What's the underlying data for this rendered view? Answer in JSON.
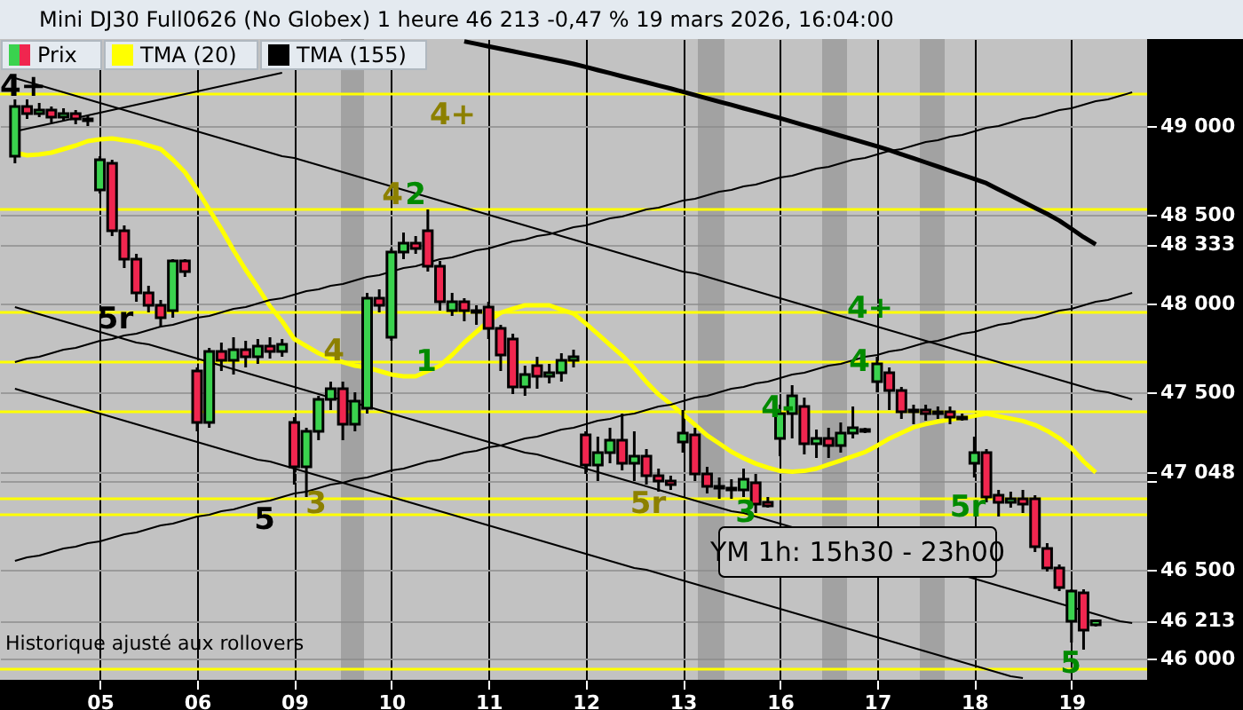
{
  "chart_data": {
    "type": "candlestick",
    "title": "Mini DJ30 Full0626 (No Globex) 1 heure 46 213 -0,47 % 19 mars 2026, 16:04:00",
    "categories": [
      null,
      null,
      null,
      null,
      null,
      null,
      null,
      "05",
      null,
      null,
      null,
      null,
      null,
      null,
      null,
      "06",
      null,
      null,
      null,
      null,
      null,
      null,
      null,
      "09",
      null,
      null,
      null,
      null,
      null,
      null,
      null,
      "10",
      null,
      null,
      null,
      null,
      null,
      null,
      null,
      "11",
      null,
      null,
      null,
      null,
      null,
      null,
      null,
      "12",
      null,
      null,
      null,
      null,
      null,
      null,
      null,
      "13",
      null,
      null,
      null,
      null,
      null,
      null,
      null,
      "16",
      null,
      null,
      null,
      null,
      null,
      null,
      null,
      "17",
      null,
      null,
      null,
      null,
      null,
      null,
      null,
      "18",
      null,
      null,
      null,
      null,
      null,
      null,
      null,
      "19",
      null,
      null,
      null,
      null,
      null
    ],
    "ylim": [
      45880,
      49490
    ],
    "yticks": [
      {
        "value": 46000,
        "label": "46 000"
      },
      {
        "value": 46213,
        "label": "46 213"
      },
      {
        "value": 46500,
        "label": "46 500"
      },
      {
        "value": 47000,
        "label": null
      },
      {
        "value": 47048,
        "label": "47 048"
      },
      {
        "value": 47500,
        "label": "47 500"
      },
      {
        "value": 48000,
        "label": "48 000"
      },
      {
        "value": 48333,
        "label": "48 333"
      },
      {
        "value": 48500,
        "label": "48 500"
      },
      {
        "value": 49000,
        "label": "49 000"
      }
    ],
    "grid": true,
    "legend": "top left",
    "series": [
      {
        "name": "Prix",
        "ohlc": [
          [
            48830,
            49150,
            48790,
            49110
          ],
          [
            49110,
            49150,
            49040,
            49070
          ],
          [
            49070,
            49130,
            49050,
            49090
          ],
          [
            49090,
            49110,
            49020,
            49050
          ],
          [
            49050,
            49100,
            49030,
            49070
          ],
          [
            49070,
            49090,
            49010,
            49040
          ],
          [
            49040,
            49060,
            49000,
            49030
          ],
          [
            48640,
            48830,
            48620,
            48810
          ],
          [
            48790,
            48810,
            48380,
            48410
          ],
          [
            48410,
            48440,
            48200,
            48250
          ],
          [
            48250,
            48280,
            48010,
            48060
          ],
          [
            48060,
            48100,
            47950,
            47990
          ],
          [
            47990,
            48020,
            47870,
            47920
          ],
          [
            47960,
            48250,
            47920,
            48240
          ],
          [
            48240,
            48250,
            48150,
            48180
          ],
          [
            47620,
            47640,
            47280,
            47330
          ],
          [
            47330,
            47750,
            47300,
            47730
          ],
          [
            47730,
            47780,
            47620,
            47680
          ],
          [
            47680,
            47810,
            47600,
            47740
          ],
          [
            47740,
            47790,
            47640,
            47700
          ],
          [
            47700,
            47800,
            47660,
            47760
          ],
          [
            47760,
            47810,
            47690,
            47730
          ],
          [
            47730,
            47800,
            47700,
            47770
          ],
          [
            47330,
            47360,
            46980,
            47080
          ],
          [
            47080,
            47300,
            46910,
            47280
          ],
          [
            47280,
            47480,
            47230,
            47460
          ],
          [
            47460,
            47560,
            47400,
            47520
          ],
          [
            47520,
            47560,
            47230,
            47320
          ],
          [
            47320,
            47500,
            47280,
            47450
          ],
          [
            47410,
            48060,
            47380,
            48030
          ],
          [
            48030,
            48080,
            47950,
            47990
          ],
          [
            47810,
            48310,
            47790,
            48290
          ],
          [
            48290,
            48400,
            48250,
            48340
          ],
          [
            48340,
            48380,
            48280,
            48310
          ],
          [
            48410,
            48530,
            48180,
            48210
          ],
          [
            48210,
            48240,
            47960,
            48010
          ],
          [
            47960,
            48060,
            47930,
            48010
          ],
          [
            48010,
            48030,
            47900,
            47960
          ],
          [
            47960,
            47990,
            47880,
            47950
          ],
          [
            47980,
            48010,
            47800,
            47860
          ],
          [
            47860,
            47880,
            47620,
            47710
          ],
          [
            47800,
            47830,
            47490,
            47530
          ],
          [
            47530,
            47650,
            47480,
            47600
          ],
          [
            47650,
            47700,
            47520,
            47590
          ],
          [
            47590,
            47660,
            47550,
            47610
          ],
          [
            47610,
            47720,
            47560,
            47680
          ],
          [
            47680,
            47740,
            47640,
            47700
          ],
          [
            47260,
            47280,
            47040,
            47090
          ],
          [
            47090,
            47250,
            47000,
            47160
          ],
          [
            47160,
            47300,
            47100,
            47230
          ],
          [
            47230,
            47380,
            47060,
            47100
          ],
          [
            47100,
            47280,
            47000,
            47140
          ],
          [
            47140,
            47180,
            46980,
            47030
          ],
          [
            47030,
            47070,
            46940,
            47000
          ],
          [
            47000,
            47030,
            46950,
            46980
          ],
          [
            47220,
            47400,
            47160,
            47270
          ],
          [
            47260,
            47300,
            47000,
            47040
          ],
          [
            47040,
            47080,
            46930,
            46970
          ],
          [
            46970,
            47020,
            46900,
            46960
          ],
          [
            46960,
            47010,
            46900,
            46950
          ],
          [
            46950,
            47070,
            46910,
            47010
          ],
          [
            46990,
            47040,
            46820,
            46870
          ],
          [
            46880,
            46910,
            46850,
            46860
          ],
          [
            47240,
            47430,
            47140,
            47380
          ],
          [
            47380,
            47540,
            47240,
            47480
          ],
          [
            47420,
            47470,
            47150,
            47210
          ],
          [
            47210,
            47290,
            47130,
            47240
          ],
          [
            47240,
            47300,
            47130,
            47200
          ],
          [
            47200,
            47330,
            47160,
            47270
          ],
          [
            47270,
            47420,
            47240,
            47300
          ],
          [
            47290,
            47300,
            47270,
            47280
          ],
          [
            47560,
            47700,
            47500,
            47660
          ],
          [
            47610,
            47640,
            47400,
            47510
          ],
          [
            47510,
            47530,
            47350,
            47390
          ],
          [
            47390,
            47430,
            47320,
            47400
          ],
          [
            47400,
            47430,
            47340,
            47380
          ],
          [
            47380,
            47420,
            47350,
            47390
          ],
          [
            47390,
            47420,
            47320,
            47360
          ],
          [
            47360,
            47380,
            47340,
            47350
          ],
          [
            47100,
            47250,
            47020,
            47160
          ],
          [
            47160,
            47180,
            46880,
            46910
          ],
          [
            46920,
            46950,
            46800,
            46880
          ],
          [
            46880,
            46940,
            46850,
            46900
          ],
          [
            46900,
            46950,
            46820,
            46870
          ],
          [
            46900,
            46920,
            46600,
            46630
          ],
          [
            46620,
            46650,
            46490,
            46510
          ],
          [
            46510,
            46530,
            46380,
            46400
          ],
          [
            46210,
            46390,
            46090,
            46380
          ],
          [
            46370,
            46390,
            46050,
            46160
          ],
          [
            46190,
            46220,
            46180,
            46213
          ],
          null,
          null,
          null
        ],
        "colors": [
          "#3ad24e",
          "#f0264f",
          "#3ad24e",
          "#f0264f",
          "#3ad24e",
          "#f0264f",
          "#f0264f",
          "#3ad24e",
          "#f0264f",
          "#f0264f",
          "#f0264f",
          "#f0264f",
          "#f0264f",
          "#3ad24e",
          "#f0264f",
          "#f0264f",
          "#3ad24e",
          "#f0264f",
          "#3ad24e",
          "#f0264f",
          "#3ad24e",
          "#f0264f",
          "#3ad24e",
          "#f0264f",
          "#3ad24e",
          "#3ad24e",
          "#3ad24e",
          "#f0264f",
          "#3ad24e",
          "#3ad24e",
          "#f0264f",
          "#3ad24e",
          "#3ad24e",
          "#f0264f",
          "#f0264f",
          "#f0264f",
          "#3ad24e",
          "#f0264f",
          "#f0264f",
          "#f0264f",
          "#f0264f",
          "#f0264f",
          "#3ad24e",
          "#f0264f",
          "#3ad24e",
          "#3ad24e",
          "#3ad24e",
          "#f0264f",
          "#3ad24e",
          "#3ad24e",
          "#f0264f",
          "#3ad24e",
          "#f0264f",
          "#f0264f",
          "#f0264f",
          "#3ad24e",
          "#f0264f",
          "#f0264f",
          "#f0264f",
          "#f0264f",
          "#3ad24e",
          "#f0264f",
          "#f0264f",
          "#3ad24e",
          "#3ad24e",
          "#f0264f",
          "#3ad24e",
          "#f0264f",
          "#3ad24e",
          "#3ad24e",
          "#f0264f",
          "#3ad24e",
          "#f0264f",
          "#f0264f",
          "#3ad24e",
          "#f0264f",
          "#3ad24e",
          "#f0264f",
          "#f0264f",
          "#3ad24e",
          "#f0264f",
          "#f0264f",
          "#3ad24e",
          "#f0264f",
          "#f0264f",
          "#f0264f",
          "#f0264f",
          "#3ad24e",
          "#f0264f",
          "#3ad24e",
          null,
          null,
          null
        ]
      },
      {
        "name": "TMA (20)",
        "type": "line",
        "color": "#ffff00",
        "values": [
          48850,
          48835,
          48840,
          48850,
          48870,
          48890,
          48915,
          48925,
          48930,
          48920,
          48910,
          48890,
          48870,
          48810,
          48740,
          48640,
          48530,
          48420,
          48300,
          48190,
          48090,
          47985,
          47900,
          47800,
          47760,
          47720,
          47690,
          47670,
          47650,
          47640,
          47620,
          47600,
          47590,
          47590,
          47620,
          47650,
          47710,
          47780,
          47840,
          47900,
          47948,
          47971,
          47990,
          47990,
          47990,
          47966,
          47943,
          47888,
          47828,
          47767,
          47707,
          47637,
          47558,
          47488,
          47433,
          47377,
          47317,
          47257,
          47211,
          47165,
          47129,
          47098,
          47076,
          47057,
          47053,
          47057,
          47070,
          47093,
          47116,
          47139,
          47163,
          47199,
          47239,
          47271,
          47303,
          47321,
          47335,
          47346,
          47355,
          47367,
          47380,
          47365,
          47352,
          47338,
          47316,
          47283,
          47241,
          47186,
          47110,
          47048,
          null,
          null,
          null
        ]
      },
      {
        "name": "TMA (155)",
        "type": "line",
        "color": "#000000",
        "values": [
          null,
          null,
          null,
          null,
          null,
          null,
          null,
          null,
          null,
          null,
          null,
          null,
          null,
          null,
          null,
          null,
          null,
          null,
          null,
          null,
          null,
          null,
          null,
          null,
          null,
          null,
          null,
          null,
          null,
          null,
          null,
          null,
          null,
          null,
          null,
          null,
          null,
          49477,
          49463,
          49449,
          49435,
          49421,
          49407,
          49393,
          49379,
          49365,
          49350,
          49333,
          49315,
          49298,
          49280,
          49263,
          49246,
          49228,
          49211,
          49193,
          49174,
          49156,
          49137,
          49119,
          49100,
          49082,
          49063,
          49044,
          49024,
          49004,
          48985,
          48965,
          48945,
          48926,
          48906,
          48886,
          48864,
          48841,
          48818,
          48795,
          48772,
          48748,
          48725,
          48702,
          48678,
          48643,
          48609,
          48574,
          48539,
          48505,
          48467,
          48421,
          48374,
          48333,
          null,
          null,
          null
        ]
      },
      {
        "type": "line",
        "color": "#000000",
        "values": [
          48970,
          48985,
          49000,
          49015,
          49030,
          49045,
          49060,
          49075,
          49090,
          49105,
          49120,
          49135,
          49150,
          49165,
          49180,
          49195,
          49210,
          49225,
          49240,
          49255,
          49270,
          49285,
          49300,
          null,
          null,
          null,
          null,
          null,
          null,
          null,
          null,
          null,
          null,
          null,
          null,
          null,
          null,
          null,
          null,
          null,
          null,
          null,
          null,
          null,
          null,
          null,
          null,
          null,
          null,
          null,
          null,
          null,
          null,
          null,
          null,
          null,
          null,
          null,
          null,
          null,
          null,
          null,
          null,
          null,
          null,
          null,
          null,
          null,
          null,
          null,
          null,
          null,
          null,
          null,
          null,
          null,
          null,
          null,
          null,
          null,
          null,
          null,
          null,
          null,
          null,
          null,
          null,
          null,
          null,
          null,
          null,
          null,
          null
        ]
      },
      {
        "type": "line",
        "color": "#000000",
        "values": [
          47670,
          47690,
          47700,
          47720,
          47740,
          47750,
          47770,
          47790,
          47800,
          47820,
          47830,
          47850,
          47870,
          47880,
          47900,
          47920,
          47930,
          47950,
          47970,
          47980,
          48000,
          48020,
          48030,
          48050,
          48070,
          48080,
          48100,
          48110,
          48130,
          48150,
          48160,
          48180,
          48200,
          48210,
          48230,
          48250,
          48260,
          48280,
          48300,
          48310,
          48330,
          48350,
          48360,
          48380,
          48390,
          48410,
          48430,
          48440,
          48460,
          48480,
          48490,
          48510,
          48530,
          48540,
          48560,
          48580,
          48590,
          48610,
          48630,
          48640,
          48660,
          48670,
          48690,
          48710,
          48720,
          48740,
          48760,
          48770,
          48790,
          48810,
          48820,
          48840,
          48860,
          48870,
          48890,
          48910,
          48920,
          48940,
          48950,
          48970,
          48990,
          49000,
          49020,
          49040,
          49050,
          49070,
          49090,
          49100,
          49120,
          49140,
          49150,
          49170,
          49190
        ]
      },
      {
        "type": "line",
        "color": "#000000",
        "values": [
          49270,
          49250,
          49230,
          49210,
          49190,
          49170,
          49150,
          49130,
          49110,
          49090,
          49070,
          49050,
          49030,
          49010,
          48990,
          48970,
          48950,
          48930,
          48910,
          48890,
          48870,
          48850,
          48830,
          48820,
          48800,
          48780,
          48760,
          48740,
          48720,
          48700,
          48680,
          48660,
          48640,
          48620,
          48600,
          48580,
          48560,
          48540,
          48520,
          48500,
          48480,
          48460,
          48440,
          48420,
          48400,
          48380,
          48360,
          48340,
          48320,
          48300,
          48280,
          48260,
          48240,
          48220,
          48200,
          48180,
          48170,
          48150,
          48130,
          48110,
          48090,
          48070,
          48050,
          48030,
          48010,
          47990,
          47970,
          47950,
          47930,
          47910,
          47890,
          47870,
          47850,
          47830,
          47810,
          47790,
          47770,
          47750,
          47730,
          47710,
          47690,
          47670,
          47650,
          47630,
          47610,
          47590,
          47570,
          47550,
          47530,
          47510,
          47500,
          47480,
          47460
        ]
      },
      {
        "type": "line",
        "color": "#000000",
        "values": [
          47980,
          47960,
          47940,
          47920,
          47900,
          47880,
          47860,
          47840,
          47820,
          47800,
          47780,
          47770,
          47750,
          47730,
          47710,
          47690,
          47670,
          47650,
          47630,
          47610,
          47590,
          47570,
          47550,
          47530,
          47510,
          47490,
          47470,
          47460,
          47440,
          47420,
          47400,
          47380,
          47360,
          47340,
          47320,
          47300,
          47280,
          47260,
          47240,
          47220,
          47200,
          47180,
          47160,
          47150,
          47130,
          47110,
          47090,
          47070,
          47050,
          47030,
          47010,
          46990,
          46970,
          46950,
          46930,
          46910,
          46890,
          46870,
          46850,
          46830,
          46820,
          46800,
          46780,
          46760,
          46740,
          null,
          null,
          null,
          null,
          null,
          null,
          null,
          null,
          null,
          null,
          null,
          null,
          null,
          46470,
          46450,
          46430,
          46410,
          46390,
          46370,
          46350,
          46330,
          46310,
          46290,
          46270,
          46250,
          46230,
          46210,
          46200
        ]
      },
      {
        "type": "line",
        "color": "#000000",
        "values": [
          47520,
          47500,
          47480,
          47460,
          47440,
          47420,
          47400,
          47380,
          47360,
          47340,
          47320,
          47300,
          47280,
          47260,
          47240,
          47220,
          47200,
          47180,
          47160,
          47140,
          47120,
          47110,
          47090,
          47070,
          47050,
          47030,
          47010,
          46990,
          46970,
          46950,
          46930,
          46910,
          46890,
          46870,
          46850,
          46830,
          46810,
          46790,
          46770,
          46750,
          46730,
          46710,
          46690,
          46670,
          46650,
          46630,
          46610,
          46590,
          46570,
          46550,
          46530,
          46510,
          46500,
          46480,
          46460,
          46440,
          46420,
          46400,
          46380,
          46360,
          46340,
          46320,
          46300,
          46280,
          46260,
          46240,
          46220,
          46200,
          46180,
          46160,
          46140,
          46120,
          46100,
          46080,
          46060,
          46040,
          46020,
          46000,
          45980,
          45960,
          45940,
          45920,
          45900,
          45890,
          null,
          null,
          null,
          null,
          null,
          null,
          null,
          null,
          null
        ]
      },
      {
        "type": "line",
        "color": "#000000",
        "values": [
          46550,
          46570,
          46580,
          46600,
          46620,
          46630,
          46650,
          46660,
          46680,
          46700,
          46710,
          46730,
          46750,
          46760,
          46780,
          46800,
          46810,
          46830,
          46840,
          46860,
          46880,
          46890,
          46910,
          46930,
          46940,
          46960,
          46980,
          46990,
          47010,
          47020,
          47040,
          47060,
          47070,
          47090,
          47110,
          47120,
          47140,
          47160,
          47170,
          47190,
          47200,
          47220,
          47240,
          47250,
          47270,
          47290,
          47300,
          47320,
          47340,
          47350,
          47370,
          47380,
          47400,
          47420,
          47430,
          47450,
          47470,
          47480,
          47500,
          47520,
          47530,
          47550,
          47560,
          47580,
          47600,
          47610,
          47630,
          47650,
          47660,
          47680,
          47700,
          47710,
          47730,
          47740,
          47760,
          47780,
          47790,
          47810,
          47830,
          47840,
          47860,
          47880,
          47890,
          47910,
          47920,
          47940,
          47960,
          47970,
          47990,
          48010,
          48020,
          48040,
          48060
        ]
      }
    ],
    "ref_lines": [
      {
        "axis": "y",
        "value": 49180,
        "color": "#ffff00"
      },
      {
        "axis": "y",
        "value": 48530,
        "color": "#ffff00"
      },
      {
        "axis": "y",
        "value": 47950,
        "color": "#ffff00"
      },
      {
        "axis": "y",
        "value": 47670,
        "color": "#ffff00"
      },
      {
        "axis": "y",
        "value": 47390,
        "color": "#ffff00"
      },
      {
        "axis": "y",
        "value": 46900,
        "color": "#ffff00"
      },
      {
        "axis": "y",
        "value": 46810,
        "color": "#ffff00"
      },
      {
        "axis": "y",
        "value": 45940,
        "color": "#ffff00"
      }
    ],
    "annotations": [
      "4+",
      "4+",
      "4",
      "2",
      "5r",
      "4",
      "1",
      "5",
      "3",
      "5r",
      "3",
      "4-",
      "4+",
      "4",
      "5r",
      "5",
      "YM 1h: 15h30 - 23h00",
      "Historique ajusté aux rollovers"
    ]
  }
}
